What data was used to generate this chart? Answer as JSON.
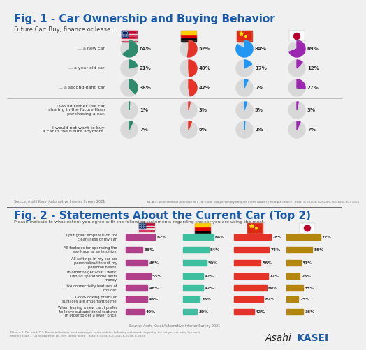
{
  "fig1_title": "Fig. 1 - Car Ownership and Buying Behavior",
  "fig1_subtitle": "Future Car: Buy, finance or lease ...",
  "fig1_source": "Source: Asahi Kasei Automotive Interior Survey 2021",
  "fig1_note": "A4. A.9: Which kind of purchase of a car could you personally imagine in the future? | Multiple Choice   Base: n₁=1005, n₂=1004, n₃=1004, n₄=1000",
  "fig1_rows": [
    {
      "label": "... a new car",
      "values": [
        64,
        52,
        84,
        69
      ],
      "separator": false
    },
    {
      "label": "... a year-old car",
      "values": [
        21,
        49,
        17,
        12
      ],
      "separator": false
    },
    {
      "label": "... a second-hand car",
      "values": [
        38,
        47,
        7,
        27
      ],
      "separator": true
    },
    {
      "label": "I would rather use car\nsharing in the future than\npurchasing a car.",
      "values": [
        1,
        3,
        5,
        3
      ],
      "separator": false
    },
    {
      "label": "I would not want to buy\na car in the future anymore.",
      "values": [
        7,
        6,
        1,
        7
      ],
      "separator": false
    }
  ],
  "fig1_colors": [
    "#2e8b6e",
    "#e63329",
    "#2196f3",
    "#9c27b0"
  ],
  "fig1_bg_color": "#d8d8d8",
  "fig2_title": "Fig. 2 - Statements About the Current Car (Top 2)",
  "fig2_subtitle": "Please indicate to what extent you agree with the following statements regarding the car you are using the most.",
  "fig2_source": "Source: Asahi Kasei Automotive Interior Survey 2021",
  "fig2_note": "Filter: A.2: Car used: C.1: Please indicate to what extent you agree with the following statements regarding the car you are using the most.\nMatrix | Scale 1 'Do not agree at all' to 5 'Totally agree' | Base: n₁=499, n₂=1001, n₃=499, n₄=491",
  "fig2_rows": [
    {
      "label": "I put great emphasis on the\ncleanliness of my car.",
      "values": [
        62,
        64,
        78,
        72
      ]
    },
    {
      "label": "All features for operating the\ncar have to be intuitive.",
      "values": [
        36,
        54,
        74,
        55
      ]
    },
    {
      "label": "All settings in my car are\npersonalized to suit my\npersonal needs.",
      "values": [
        46,
        50,
        56,
        31
      ]
    },
    {
      "label": "In order to get what I want,\nI would spend some extra\nmoney.",
      "values": [
        53,
        42,
        72,
        28
      ]
    },
    {
      "label": "I like connectivity features of\nmy car.",
      "values": [
        46,
        42,
        69,
        35
      ]
    },
    {
      "label": "Good-looking premium\nsurfaces are important to me.",
      "values": [
        45,
        36,
        62,
        25
      ]
    },
    {
      "label": "When buying a new car, I prefer\nto leave out additional features\nin order to get a lower price.",
      "values": [
        40,
        30,
        42,
        36
      ]
    }
  ],
  "fig2_colors": [
    "#b0408a",
    "#3dbfa0",
    "#e63329",
    "#b5860d"
  ],
  "title_color": "#1a5aab",
  "bg_color": "#f0f0f0",
  "asahi_kasei_blue": "#1a5aab"
}
